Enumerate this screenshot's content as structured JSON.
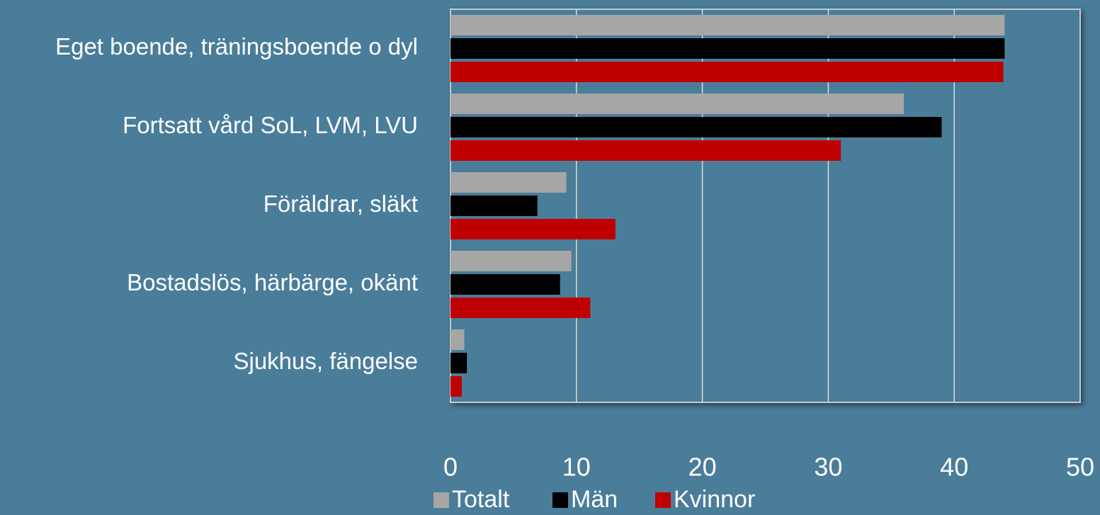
{
  "chart_data": {
    "type": "bar",
    "orientation": "horizontal",
    "categories": [
      "Eget boende, träningsboende o dyl",
      "Fortsatt vård SoL, LVM, LVU",
      "Föräldrar, släkt",
      "Bostadslös, härbärge, okänt",
      "Sjukhus, fängelse"
    ],
    "series": [
      {
        "name": "Totalt",
        "color": "#a6a6a6",
        "values": [
          44,
          36,
          9.2,
          9.6,
          1.1
        ]
      },
      {
        "name": "Män",
        "color": "#000000",
        "values": [
          44,
          39,
          6.9,
          8.7,
          1.3
        ]
      },
      {
        "name": "Kvinnor",
        "color": "#c00000",
        "values": [
          43.9,
          31,
          13.1,
          11.1,
          0.9
        ]
      }
    ],
    "xlim": [
      0,
      50
    ],
    "xticks": [
      0,
      10,
      20,
      30,
      40,
      50
    ],
    "grid": true,
    "legend": "bottom"
  }
}
